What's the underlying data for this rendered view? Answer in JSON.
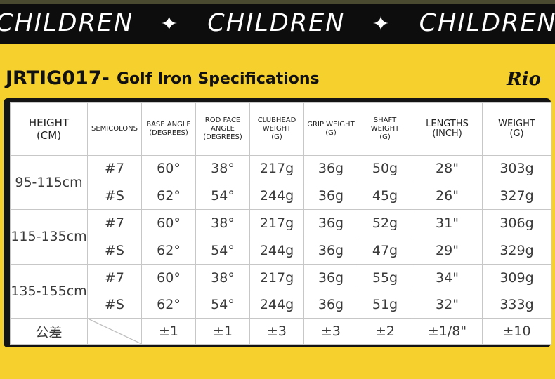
{
  "banner": {
    "words": [
      "CHILDREN",
      "CHILDREN",
      "CHILDREN"
    ],
    "star": "✦"
  },
  "title": {
    "model": "JRTIG017-",
    "subtitle": "Golf Iron Specifications",
    "logo": "Rio"
  },
  "table": {
    "headers": {
      "height": [
        "HEIGHT",
        "(CM)"
      ],
      "semicolons": "SEMICOLONS",
      "base_angle": [
        "BASE ANGLE",
        "(DEGREES)"
      ],
      "rod_face_angle": [
        "ROD FACE ANGLE",
        "(DEGREES)"
      ],
      "clubhead_weight": [
        "CLUBHEAD",
        "WEIGHT",
        "(G)"
      ],
      "grip_weight": [
        "GRIP WEIGHT",
        "(G)"
      ],
      "shaft_weight": [
        "SHAFT WEIGHT",
        "(G)"
      ],
      "lengths": [
        "LENGTHS",
        "(INCH)"
      ],
      "weight": [
        "WEIGHT",
        "(G)"
      ]
    },
    "groups": [
      {
        "range": "95-115cm",
        "rows": [
          [
            "#7",
            "60°",
            "38°",
            "217g",
            "36g",
            "50g",
            "28\"",
            "303g"
          ],
          [
            "#S",
            "62°",
            "54°",
            "244g",
            "36g",
            "45g",
            "26\"",
            "327g"
          ]
        ]
      },
      {
        "range": "115-135cm",
        "rows": [
          [
            "#7",
            "60°",
            "38°",
            "217g",
            "36g",
            "52g",
            "31\"",
            "306g"
          ],
          [
            "#S",
            "62°",
            "54°",
            "244g",
            "36g",
            "47g",
            "29\"",
            "329g"
          ]
        ]
      },
      {
        "range": "135-155cm",
        "rows": [
          [
            "#7",
            "60°",
            "38°",
            "217g",
            "36g",
            "55g",
            "34\"",
            "309g"
          ],
          [
            "#S",
            "62°",
            "54°",
            "244g",
            "36g",
            "51g",
            "32\"",
            "333g"
          ]
        ]
      }
    ],
    "tolerance": {
      "label": "公差",
      "values": [
        "±1",
        "±1",
        "±3",
        "±3",
        "±2",
        "±1/8\"",
        "±10"
      ]
    }
  }
}
